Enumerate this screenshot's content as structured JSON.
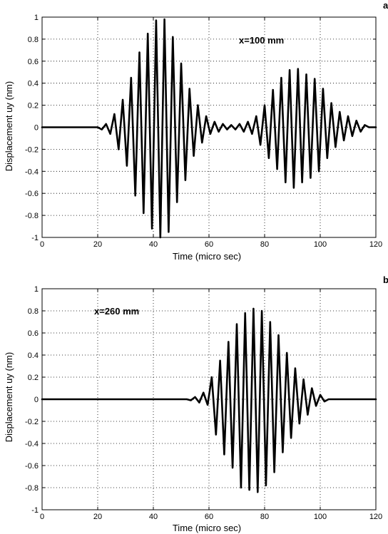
{
  "chart_data": [
    {
      "type": "line",
      "panel_label": "a",
      "annotation": "x=100 mm",
      "xlabel": "Time (micro sec)",
      "ylabel": "Displacement uy (nm)",
      "xlim": [
        0,
        120
      ],
      "ylim": [
        -1,
        1
      ],
      "xticks": [
        "0",
        "20",
        "40",
        "60",
        "80",
        "100",
        "120"
      ],
      "yticks": [
        "-1",
        "-0.8",
        "-0.6",
        "-0.4",
        "-0.2",
        "0",
        "0.2",
        "0.4",
        "0.6",
        "0.8",
        "1"
      ],
      "grid": true,
      "line_color": "#000000",
      "series": [
        {
          "x": [
            0,
            20,
            21.5,
            23,
            24.5,
            26,
            27.5,
            29,
            30.5,
            32,
            33.5,
            35,
            36.5,
            38,
            39.5,
            41,
            42.5,
            44,
            45.5,
            47,
            48.5,
            50,
            51.5,
            53,
            54.5,
            56,
            57.5,
            59,
            60.5,
            62,
            63.5,
            65,
            66.5,
            68,
            69.5,
            71,
            72.5,
            74,
            75.5,
            77,
            78.5,
            80,
            81.5,
            83,
            84.5,
            86,
            87.5,
            89,
            90.5,
            92,
            93.5,
            95,
            96.5,
            98,
            99.5,
            101,
            102.5,
            104,
            105.5,
            107,
            108.5,
            110,
            111.5,
            113,
            114.5,
            116,
            117.5,
            120
          ],
          "y": [
            0,
            0,
            -0.02,
            0.03,
            -0.06,
            0.12,
            -0.2,
            0.25,
            -0.35,
            0.45,
            -0.62,
            0.68,
            -0.78,
            0.85,
            -0.92,
            0.97,
            -1.0,
            0.98,
            -0.95,
            0.82,
            -0.68,
            0.58,
            -0.48,
            0.35,
            -0.26,
            0.2,
            -0.14,
            0.1,
            -0.06,
            0.05,
            -0.04,
            0.03,
            -0.02,
            0.02,
            -0.02,
            0.03,
            -0.04,
            0.05,
            -0.06,
            0.1,
            -0.16,
            0.2,
            -0.28,
            0.34,
            -0.38,
            0.45,
            -0.5,
            0.52,
            -0.55,
            0.53,
            -0.5,
            0.48,
            -0.46,
            0.44,
            -0.4,
            0.35,
            -0.28,
            0.22,
            -0.18,
            0.14,
            -0.12,
            0.1,
            -0.08,
            0.06,
            -0.04,
            0.02,
            0,
            0
          ]
        }
      ]
    },
    {
      "type": "line",
      "panel_label": "b",
      "annotation": "x=260 mm",
      "xlabel": "Time (micro sec)",
      "ylabel": "Displacement uy (nm)",
      "xlim": [
        0,
        120
      ],
      "ylim": [
        -1,
        1
      ],
      "xticks": [
        "0",
        "20",
        "40",
        "60",
        "80",
        "100",
        "120"
      ],
      "yticks": [
        "-1",
        "-0.8",
        "-0.6",
        "-0.4",
        "-0.2",
        "0",
        "0.2",
        "0.4",
        "0.6",
        "0.8",
        "1"
      ],
      "grid": true,
      "line_color": "#000000",
      "series": [
        {
          "x": [
            0,
            52,
            53.5,
            55,
            56.5,
            58,
            59.5,
            61,
            62.5,
            64,
            65.5,
            67,
            68.5,
            70,
            71.5,
            73,
            74.5,
            76,
            77.5,
            79,
            80.5,
            82,
            83.5,
            85,
            86.5,
            88,
            89.5,
            91,
            92.5,
            94,
            95.5,
            97,
            98.5,
            100,
            101.5,
            103,
            120
          ],
          "y": [
            0,
            0,
            -0.01,
            0.02,
            -0.03,
            0.06,
            -0.05,
            0.2,
            -0.32,
            0.35,
            -0.5,
            0.52,
            -0.62,
            0.68,
            -0.8,
            0.78,
            -0.82,
            0.82,
            -0.84,
            0.8,
            -0.78,
            0.7,
            -0.66,
            0.58,
            -0.48,
            0.42,
            -0.35,
            0.28,
            -0.22,
            0.18,
            -0.14,
            0.1,
            -0.06,
            0.04,
            -0.02,
            0,
            0
          ]
        }
      ]
    }
  ]
}
